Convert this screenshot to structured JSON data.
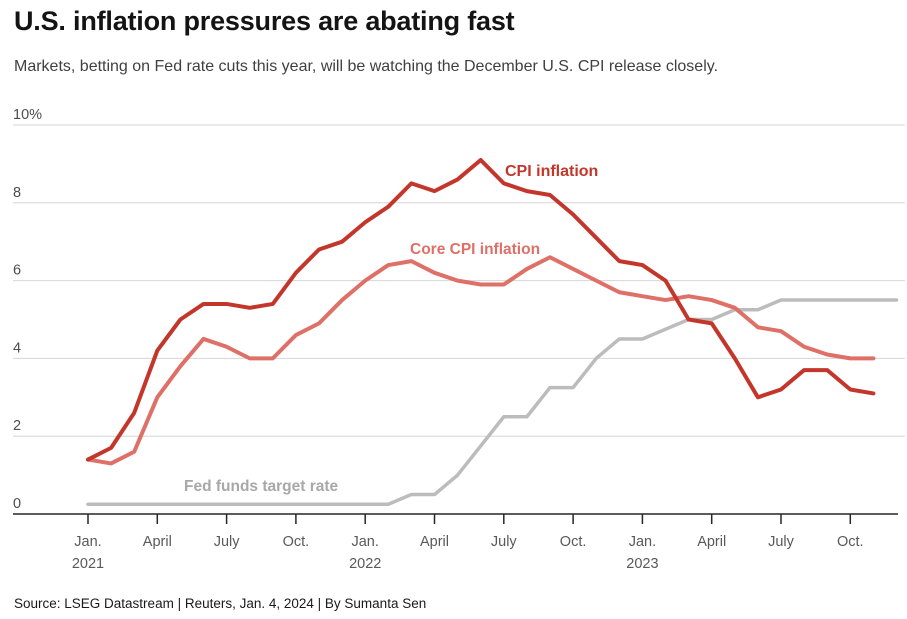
{
  "header": {
    "title": "U.S. inflation pressures are abating fast",
    "subtitle": "Markets, betting on Fed rate cuts this year, will be watching the December U.S. CPI release closely."
  },
  "chart_data": {
    "type": "line",
    "title": "U.S. inflation pressures are abating fast",
    "x_unit": "monthly, Jan. 2021 through late 2023",
    "ylim": [
      0,
      10
    ],
    "grid": "horizontal",
    "y_ticks": [
      0,
      2,
      4,
      6,
      8,
      10
    ],
    "y_tick_labels": [
      "0",
      "2",
      "4",
      "6",
      "8",
      "10%"
    ],
    "x_ticks": [
      {
        "month_index": 0,
        "label": "Jan.",
        "year": "2021"
      },
      {
        "month_index": 3,
        "label": "April",
        "year": ""
      },
      {
        "month_index": 6,
        "label": "July",
        "year": ""
      },
      {
        "month_index": 9,
        "label": "Oct.",
        "year": ""
      },
      {
        "month_index": 12,
        "label": "Jan.",
        "year": "2022"
      },
      {
        "month_index": 15,
        "label": "April",
        "year": ""
      },
      {
        "month_index": 18,
        "label": "July",
        "year": ""
      },
      {
        "month_index": 21,
        "label": "Oct.",
        "year": ""
      },
      {
        "month_index": 24,
        "label": "Jan.",
        "year": "2023"
      },
      {
        "month_index": 27,
        "label": "April",
        "year": ""
      },
      {
        "month_index": 30,
        "label": "July",
        "year": ""
      },
      {
        "month_index": 33,
        "label": "Oct.",
        "year": ""
      }
    ],
    "series": [
      {
        "id": "cpi",
        "name": "CPI inflation",
        "color": "#c3362b",
        "label_color": "#c3362b",
        "values": [
          1.4,
          1.7,
          2.6,
          4.2,
          5.0,
          5.4,
          5.4,
          5.3,
          5.4,
          6.2,
          6.8,
          7.0,
          7.5,
          7.9,
          8.5,
          8.3,
          8.6,
          9.1,
          8.5,
          8.3,
          8.2,
          7.7,
          7.1,
          6.5,
          6.4,
          6.0,
          5.0,
          4.9,
          4.0,
          3.0,
          3.2,
          3.7,
          3.7,
          3.2,
          3.1
        ]
      },
      {
        "id": "core_cpi",
        "name": "Core CPI inflation",
        "color": "#de7068",
        "label_color": "#de7068",
        "values": [
          1.4,
          1.3,
          1.6,
          3.0,
          3.8,
          4.5,
          4.3,
          4.0,
          4.0,
          4.6,
          4.9,
          5.5,
          6.0,
          6.4,
          6.5,
          6.2,
          6.0,
          5.9,
          5.9,
          6.3,
          6.6,
          6.3,
          6.0,
          5.7,
          5.6,
          5.5,
          5.6,
          5.5,
          5.3,
          4.8,
          4.7,
          4.3,
          4.1,
          4.0,
          4.0
        ]
      },
      {
        "id": "fed_funds",
        "name": "Fed funds target rate",
        "color": "#bcbcbc",
        "label_color": "#a8a8a8",
        "values": [
          0.25,
          0.25,
          0.25,
          0.25,
          0.25,
          0.25,
          0.25,
          0.25,
          0.25,
          0.25,
          0.25,
          0.25,
          0.25,
          0.25,
          0.5,
          0.5,
          1.0,
          1.75,
          2.5,
          2.5,
          3.25,
          3.25,
          4.0,
          4.5,
          4.5,
          4.75,
          5.0,
          5.0,
          5.25,
          5.25,
          5.5,
          5.5,
          5.5,
          5.5,
          5.5,
          5.5
        ]
      }
    ],
    "legend_position": "labels on chart"
  },
  "footer": {
    "source": "Source: LSEG Datastream | Reuters, Jan. 4, 2024 | By Sumanta Sen"
  }
}
